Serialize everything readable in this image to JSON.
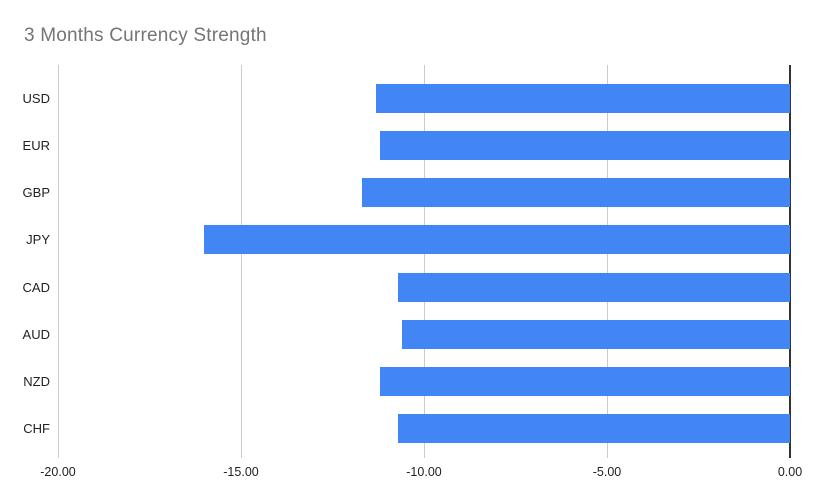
{
  "chart_data": {
    "type": "bar",
    "orientation": "horizontal",
    "title": "3 Months Currency Strength",
    "categories": [
      "USD",
      "EUR",
      "GBP",
      "JPY",
      "CAD",
      "AUD",
      "NZD",
      "CHF"
    ],
    "values": [
      -11.3,
      -11.2,
      -11.7,
      -16.0,
      -10.7,
      -10.6,
      -11.2,
      -10.7
    ],
    "xlabel": "",
    "ylabel": "",
    "xlim": [
      -20,
      0
    ],
    "xticks": [
      -20,
      -15,
      -10,
      -5,
      0
    ],
    "xtick_labels": [
      "-20.00",
      "-15.00",
      "-10.00",
      "-5.00",
      "0.00"
    ],
    "grid": true,
    "legend": "none",
    "bar_color": "#4285f4",
    "colors": {
      "title": "#757575",
      "axis_labels": "#222222",
      "gridline": "#cccccc",
      "zero_axis": "#333333",
      "background": "#ffffff"
    }
  }
}
